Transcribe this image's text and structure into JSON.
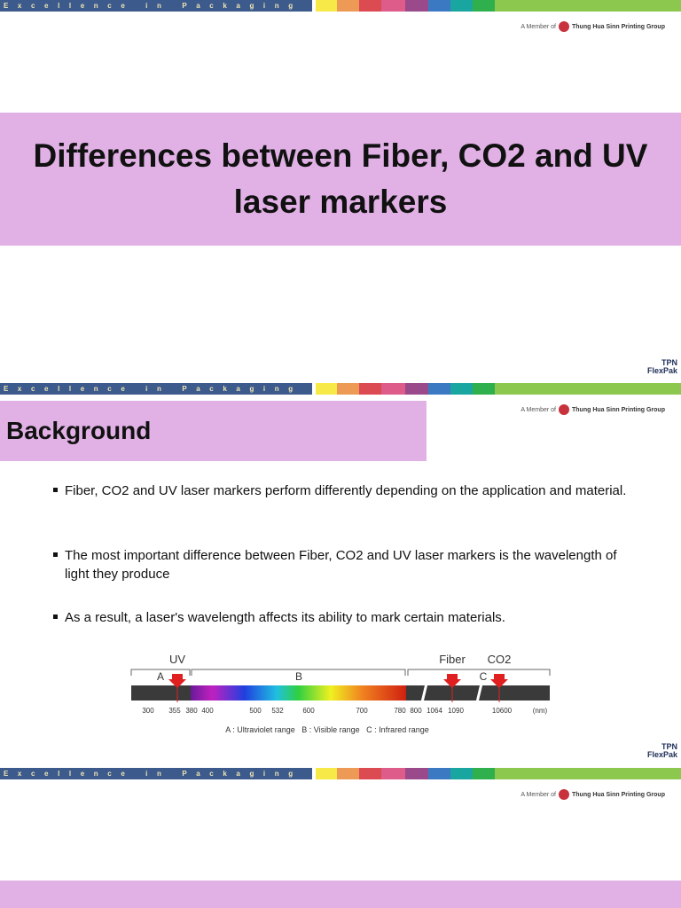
{
  "header": {
    "tagline": "Excellence in Packaging",
    "member_prefix": "A Member of",
    "group": "Thung Hua Sinn Printing Group"
  },
  "logo": {
    "line1": "TPN",
    "line2": "FlexPak"
  },
  "slides": [
    {
      "title": "Differences between Fiber, CO2 and UV laser markers"
    },
    {
      "title": "Background",
      "bullets": [
        "Fiber, CO2 and UV laser markers perform differently depending on the application and material.",
        "The most important difference between Fiber, CO2 and UV laser markers is the wavelength of light they produce",
        "As a result, a laser's wavelength affects its ability to mark certain materials."
      ],
      "figure": {
        "labels": [
          "UV",
          "A",
          "B",
          "Fiber",
          "CO2",
          "C"
        ],
        "scale": [
          "300",
          "355",
          "380",
          "400",
          "500",
          "532",
          "600",
          "700",
          "780",
          "800",
          "1064",
          "1090",
          "10600",
          "(nm)"
        ],
        "legend": "A : Ultraviolet range   B : Visible range   C : Infrared range"
      }
    }
  ]
}
